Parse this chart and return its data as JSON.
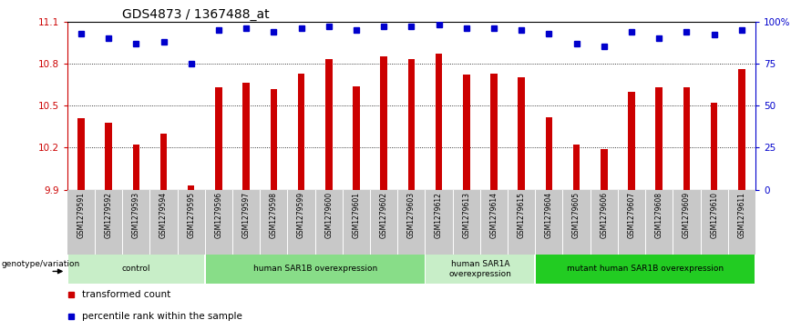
{
  "title": "GDS4873 / 1367488_at",
  "samples": [
    "GSM1279591",
    "GSM1279592",
    "GSM1279593",
    "GSM1279594",
    "GSM1279595",
    "GSM1279596",
    "GSM1279597",
    "GSM1279598",
    "GSM1279599",
    "GSM1279600",
    "GSM1279601",
    "GSM1279602",
    "GSM1279603",
    "GSM1279612",
    "GSM1279613",
    "GSM1279614",
    "GSM1279615",
    "GSM1279604",
    "GSM1279605",
    "GSM1279606",
    "GSM1279607",
    "GSM1279608",
    "GSM1279609",
    "GSM1279610",
    "GSM1279611"
  ],
  "bar_values": [
    10.41,
    10.38,
    10.22,
    10.3,
    9.93,
    10.63,
    10.66,
    10.62,
    10.73,
    10.83,
    10.64,
    10.85,
    10.83,
    10.87,
    10.72,
    10.73,
    10.7,
    10.42,
    10.22,
    10.19,
    10.6,
    10.63,
    10.63,
    10.52,
    10.76
  ],
  "percentile_values": [
    93,
    90,
    87,
    88,
    75,
    95,
    96,
    94,
    96,
    97,
    95,
    97,
    97,
    98,
    96,
    96,
    95,
    93,
    87,
    85,
    94,
    90,
    94,
    92,
    95
  ],
  "ylim": [
    9.9,
    11.1
  ],
  "yticks": [
    9.9,
    10.2,
    10.5,
    10.8,
    11.1
  ],
  "ytick_labels": [
    "9.9",
    "10.2",
    "10.5",
    "10.8",
    "11.1"
  ],
  "right_yticks": [
    0,
    25,
    50,
    75,
    100
  ],
  "right_ytick_labels": [
    "0",
    "25",
    "50",
    "75",
    "100%"
  ],
  "bar_color": "#cc0000",
  "dot_color": "#0000cc",
  "grid_yticks": [
    10.2,
    10.5,
    10.8
  ],
  "groups": [
    {
      "label": "control",
      "start": 0,
      "end": 5,
      "color": "#c8eec8"
    },
    {
      "label": "human SAR1B overexpression",
      "start": 5,
      "end": 13,
      "color": "#88dd88"
    },
    {
      "label": "human SAR1A\noverexpression",
      "start": 13,
      "end": 17,
      "color": "#c8eec8"
    },
    {
      "label": "mutant human SAR1B overexpression",
      "start": 17,
      "end": 25,
      "color": "#22cc22"
    }
  ],
  "genotype_label": "genotype/variation",
  "legend_items": [
    {
      "label": "transformed count",
      "color": "#cc0000"
    },
    {
      "label": "percentile rank within the sample",
      "color": "#0000cc"
    }
  ],
  "title_fontsize": 10,
  "bar_width": 0.25,
  "tick_area_color": "#c8c8c8",
  "tick_area_border_color": "#888888"
}
